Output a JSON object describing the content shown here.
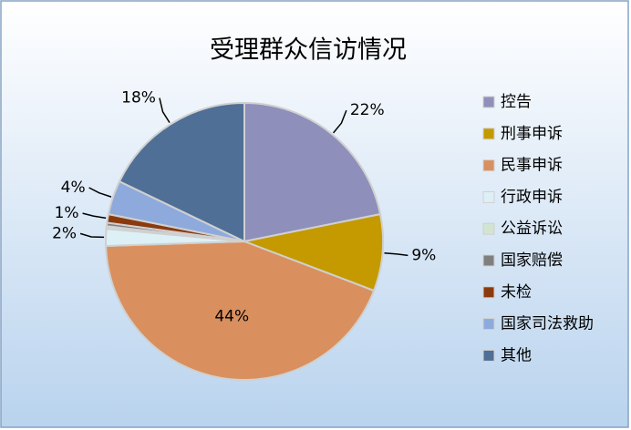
{
  "chart_data": {
    "type": "pie",
    "title": "受理群众信访情况",
    "categories": [
      "控告",
      "刑事申诉",
      "民事申诉",
      "行政申诉",
      "公益诉讼",
      "国家赔偿",
      "未检",
      "国家司法救助",
      "其他"
    ],
    "values": [
      22,
      9,
      44,
      2,
      0.3,
      0.4,
      1,
      4,
      18
    ],
    "value_labels": [
      "22%",
      "9%",
      "44%",
      "2%",
      null,
      null,
      "1%",
      "4%",
      "18%"
    ],
    "colors": [
      "#8f8fbb",
      "#c49a00",
      "#d9905e",
      "#dcf0f6",
      "#d2e4d2",
      "#7f7f7f",
      "#8b3a0e",
      "#8eaadc",
      "#4f6f96"
    ],
    "legend": "right"
  }
}
